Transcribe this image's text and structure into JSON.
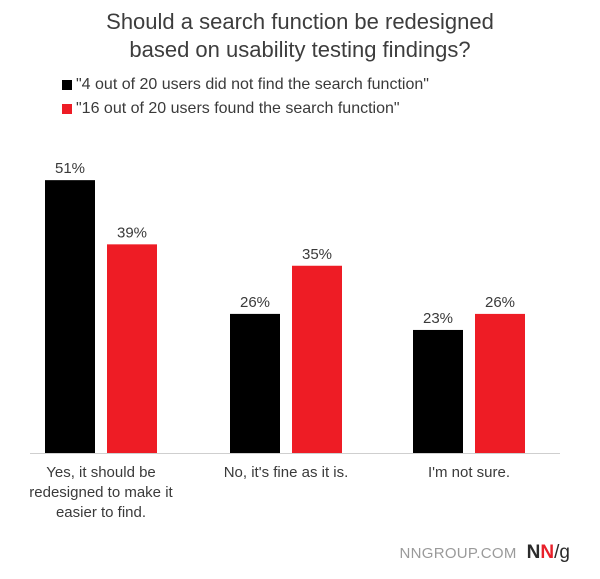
{
  "chart_data": {
    "type": "bar",
    "title_lines": [
      "Should a search function be redesigned",
      "based on usability testing findings?"
    ],
    "categories": [
      [
        "Yes, it should be",
        "redesigned to make it",
        "easier to find."
      ],
      [
        "No, it's fine as it is."
      ],
      [
        "I'm not sure."
      ]
    ],
    "series": [
      {
        "name": "\"4 out of 20 users did not find the search function\"",
        "color": "#000000",
        "values": [
          51,
          26,
          23
        ]
      },
      {
        "name": "\"16 out of 20 users found the search function\"",
        "color": "#ee1c25",
        "values": [
          39,
          35,
          26
        ]
      }
    ],
    "value_suffix": "%",
    "ylim": [
      0,
      55
    ],
    "grid": false,
    "legend_position": "top-left"
  },
  "footer": {
    "site": "NNGROUP.COM",
    "logo_n1": "N",
    "logo_n2": "N",
    "logo_slash": "/",
    "logo_g": "g"
  }
}
